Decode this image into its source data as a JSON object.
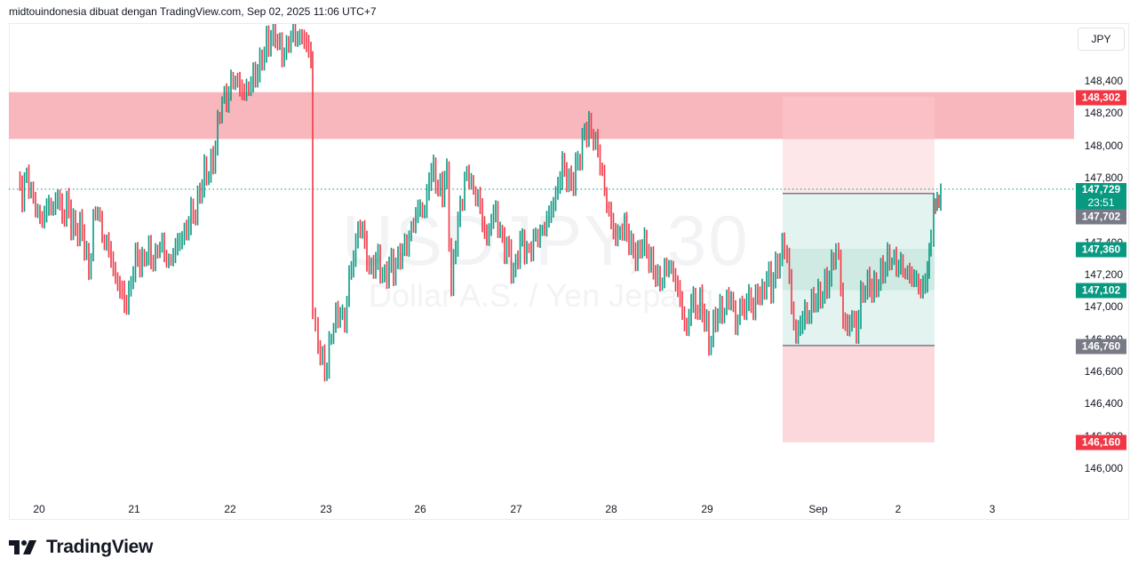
{
  "header": {
    "attribution": "midtouindonesia dibuat dengan TradingView.com, Sep 02, 2025 11:06 UTC+7"
  },
  "watermark": {
    "symbol": "USDJPY, 30",
    "description": "Dollar A.S. / Yen Jepang"
  },
  "currency_button": "JPY",
  "logo": {
    "text": "TradingView",
    "icon": "tradingview-logo-icon"
  },
  "colors": {
    "up": "#089981",
    "down": "#f23645",
    "zone_red": "#f7a9b1",
    "stop_zone": "#fde4e6",
    "target_zone": "#e3f4f0",
    "inner_zone": "#cfeae3",
    "last_price": "#089981",
    "grey_label": "#787b86"
  },
  "price_axis": {
    "ticks": [
      "148,400",
      "148,200",
      "148,000",
      "147,800",
      "147,400",
      "147,200",
      "147,000",
      "146,800",
      "146,600",
      "146,400",
      "146,200",
      "146,000"
    ],
    "labels": [
      {
        "value": "148,302",
        "color": "#f23645"
      },
      {
        "value": "147,729",
        "sub": "23:51",
        "color": "#089981"
      },
      {
        "value": "147,702",
        "color": "#787b86"
      },
      {
        "value": "147,360",
        "color": "#089981"
      },
      {
        "value": "147,102",
        "color": "#089981"
      },
      {
        "value": "146,760",
        "color": "#787b86"
      },
      {
        "value": "146,160",
        "color": "#f23645"
      }
    ]
  },
  "time_axis": {
    "ticks": [
      "20",
      "21",
      "22",
      "23",
      "26",
      "27",
      "28",
      "29",
      "Sep",
      "2",
      "3"
    ]
  },
  "chart_data": {
    "type": "ohlc-bar",
    "title": "USDJPY, 30",
    "subtitle": "Dollar A.S. / Yen Jepang",
    "xlabel": "",
    "ylabel": "JPY",
    "x_ticks": [
      "20",
      "21",
      "22",
      "23",
      "26",
      "27",
      "28",
      "29",
      "Sep",
      "2",
      "3"
    ],
    "ylim": [
      145900,
      148600
    ],
    "y_ticks": [
      146000,
      146200,
      146400,
      146600,
      146800,
      147000,
      147200,
      147400,
      147800,
      148000,
      148200,
      148400
    ],
    "grid": false,
    "last_price": 147729,
    "countdown": "23:51",
    "annotations": [
      {
        "type": "resistance_zone",
        "from": 148040,
        "to": 148330,
        "color": "#f7a9b1"
      },
      {
        "type": "long_position",
        "entry": 147702,
        "stop": 146160,
        "target": 148302,
        "range_low": 146760,
        "inner_zone": [
          147102,
          147360
        ]
      }
    ],
    "close_path": [
      [
        20,
        147780
      ],
      [
        25,
        147690
      ],
      [
        30,
        147820
      ],
      [
        35,
        147680
      ],
      [
        40,
        147620
      ],
      [
        45,
        147540
      ],
      [
        50,
        147560
      ],
      [
        55,
        147650
      ],
      [
        60,
        147610
      ],
      [
        65,
        147700
      ],
      [
        70,
        147560
      ],
      [
        75,
        147650
      ],
      [
        80,
        147530
      ],
      [
        85,
        147480
      ],
      [
        90,
        147500
      ],
      [
        95,
        147390
      ],
      [
        100,
        147200
      ],
      [
        105,
        147520
      ],
      [
        110,
        147600
      ],
      [
        115,
        147430
      ],
      [
        120,
        147390
      ],
      [
        125,
        147300
      ],
      [
        130,
        147180
      ],
      [
        135,
        147130
      ],
      [
        140,
        147020
      ],
      [
        145,
        147080
      ],
      [
        150,
        147260
      ],
      [
        155,
        147310
      ],
      [
        160,
        147270
      ],
      [
        165,
        147350
      ],
      [
        170,
        147290
      ],
      [
        175,
        147300
      ],
      [
        180,
        147390
      ],
      [
        185,
        147320
      ],
      [
        190,
        147270
      ],
      [
        195,
        147330
      ],
      [
        200,
        147390
      ],
      [
        205,
        147450
      ],
      [
        210,
        147480
      ],
      [
        215,
        147580
      ],
      [
        220,
        147600
      ],
      [
        225,
        147720
      ],
      [
        230,
        147820
      ],
      [
        235,
        147850
      ],
      [
        240,
        147900
      ],
      [
        245,
        148100
      ],
      [
        250,
        148300
      ],
      [
        255,
        148260
      ],
      [
        260,
        148380
      ],
      [
        265,
        148420
      ],
      [
        270,
        148350
      ],
      [
        275,
        148330
      ],
      [
        280,
        148380
      ],
      [
        285,
        148420
      ],
      [
        290,
        148470
      ],
      [
        295,
        148560
      ],
      [
        300,
        148620
      ],
      [
        305,
        148680
      ],
      [
        310,
        148700
      ],
      [
        315,
        148580
      ],
      [
        320,
        148560
      ],
      [
        325,
        148640
      ],
      [
        330,
        148690
      ],
      [
        335,
        148660
      ],
      [
        340,
        148680
      ],
      [
        345,
        148620
      ],
      [
        350,
        148550
      ],
      [
        352,
        146950
      ],
      [
        358,
        146800
      ],
      [
        363,
        146640
      ],
      [
        368,
        146620
      ],
      [
        373,
        146850
      ],
      [
        378,
        146920
      ],
      [
        383,
        146950
      ],
      [
        388,
        146900
      ],
      [
        393,
        147180
      ],
      [
        398,
        147300
      ],
      [
        403,
        147500
      ],
      [
        408,
        147480
      ],
      [
        413,
        147300
      ],
      [
        418,
        147240
      ],
      [
        423,
        147300
      ],
      [
        428,
        147250
      ],
      [
        433,
        147180
      ],
      [
        438,
        147260
      ],
      [
        443,
        147230
      ],
      [
        448,
        147300
      ],
      [
        453,
        147330
      ],
      [
        458,
        147380
      ],
      [
        463,
        147480
      ],
      [
        468,
        147560
      ],
      [
        473,
        147620
      ],
      [
        478,
        147600
      ],
      [
        483,
        147800
      ],
      [
        488,
        147860
      ],
      [
        493,
        147740
      ],
      [
        498,
        147730
      ],
      [
        503,
        147820
      ],
      [
        508,
        147100
      ],
      [
        513,
        147420
      ],
      [
        518,
        147600
      ],
      [
        523,
        147780
      ],
      [
        528,
        147800
      ],
      [
        533,
        147700
      ],
      [
        538,
        147680
      ],
      [
        543,
        147520
      ],
      [
        548,
        147420
      ],
      [
        553,
        147560
      ],
      [
        558,
        147580
      ],
      [
        563,
        147470
      ],
      [
        568,
        147380
      ],
      [
        573,
        147330
      ],
      [
        578,
        147200
      ],
      [
        583,
        147350
      ],
      [
        588,
        147400
      ],
      [
        593,
        147330
      ],
      [
        598,
        147360
      ],
      [
        603,
        147420
      ],
      [
        608,
        147450
      ],
      [
        613,
        147500
      ],
      [
        618,
        147560
      ],
      [
        623,
        147660
      ],
      [
        628,
        147750
      ],
      [
        633,
        147880
      ],
      [
        638,
        147820
      ],
      [
        643,
        147760
      ],
      [
        648,
        147850
      ],
      [
        653,
        147960
      ],
      [
        658,
        148080
      ],
      [
        663,
        148100
      ],
      [
        668,
        148050
      ],
      [
        673,
        147950
      ],
      [
        678,
        147800
      ],
      [
        683,
        147640
      ],
      [
        688,
        147520
      ],
      [
        693,
        147430
      ],
      [
        698,
        147480
      ],
      [
        703,
        147500
      ],
      [
        708,
        147420
      ],
      [
        713,
        147360
      ],
      [
        718,
        147300
      ],
      [
        723,
        147420
      ],
      [
        728,
        147360
      ],
      [
        733,
        147250
      ],
      [
        738,
        147200
      ],
      [
        743,
        147140
      ],
      [
        748,
        147200
      ],
      [
        753,
        147260
      ],
      [
        758,
        147200
      ],
      [
        763,
        147100
      ],
      [
        768,
        146980
      ],
      [
        773,
        146850
      ],
      [
        778,
        147050
      ],
      [
        783,
        147000
      ],
      [
        788,
        147030
      ],
      [
        793,
        146940
      ],
      [
        798,
        146780
      ],
      [
        803,
        146880
      ],
      [
        808,
        146960
      ],
      [
        813,
        146960
      ],
      [
        818,
        147020
      ],
      [
        823,
        147050
      ],
      [
        828,
        146880
      ],
      [
        833,
        147000
      ],
      [
        838,
        146980
      ],
      [
        843,
        147080
      ],
      [
        848,
        146990
      ],
      [
        853,
        147100
      ],
      [
        858,
        147080
      ],
      [
        863,
        147200
      ],
      [
        868,
        147120
      ],
      [
        873,
        147240
      ],
      [
        878,
        147300
      ],
      [
        883,
        147380
      ],
      [
        886,
        147320
      ],
      [
        891,
        147000
      ],
      [
        896,
        146820
      ],
      [
        901,
        146900
      ],
      [
        906,
        146960
      ],
      [
        911,
        146980
      ],
      [
        916,
        147050
      ],
      [
        921,
        147060
      ],
      [
        926,
        147100
      ],
      [
        931,
        147140
      ],
      [
        936,
        147240
      ],
      [
        941,
        147380
      ],
      [
        944,
        147300
      ],
      [
        949,
        146920
      ],
      [
        954,
        146860
      ],
      [
        959,
        146960
      ],
      [
        964,
        146840
      ],
      [
        969,
        147060
      ],
      [
        974,
        147140
      ],
      [
        979,
        147140
      ],
      [
        984,
        147100
      ],
      [
        989,
        147180
      ],
      [
        994,
        147220
      ],
      [
        999,
        147280
      ],
      [
        1004,
        147300
      ],
      [
        1009,
        147240
      ],
      [
        1014,
        147250
      ],
      [
        1019,
        147220
      ],
      [
        1024,
        147190
      ],
      [
        1029,
        147180
      ],
      [
        1034,
        147150
      ],
      [
        1039,
        147100
      ],
      [
        1044,
        147250
      ],
      [
        1048,
        147420
      ],
      [
        1051,
        147640
      ],
      [
        1055,
        147620
      ],
      [
        1059,
        147729
      ]
    ]
  }
}
